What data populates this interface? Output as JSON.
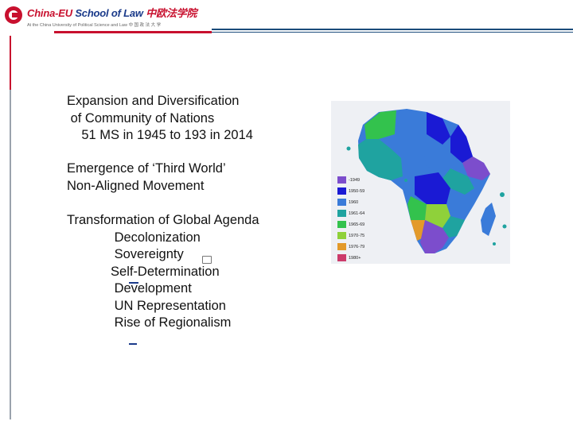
{
  "header": {
    "logo_title_red": "China-EU",
    "logo_title_blue": " School of Law",
    "logo_title_cn": " 中欧法学院",
    "logo_subtitle": "At the China University of Political Science and Law   中 国 政 法 大 学"
  },
  "content": {
    "block1": "Expansion and Diversification\n of Community of Nations\n    51 MS in 1945 to 193 in 2014",
    "block2": "Emergence of ‘Third World’\nNon-Aligned Movement",
    "block3": "Transformation of Global Agenda\n             Decolonization\n             Sovereignty\n            Self-Determination\n             Development\n             UN Representation\n             Rise of Regionalism"
  },
  "map_legend": [
    {
      "label": "-1949",
      "color": "#7c4dcc"
    },
    {
      "label": "1950-59",
      "color": "#1a1ad4"
    },
    {
      "label": "1960",
      "color": "#3a7bd9"
    },
    {
      "label": "1961-64",
      "color": "#1fa3a0"
    },
    {
      "label": "1965-69",
      "color": "#33c24d"
    },
    {
      "label": "1970-75",
      "color": "#8fd13a"
    },
    {
      "label": "1976-79",
      "color": "#e39a2a"
    },
    {
      "label": "1980+",
      "color": "#cc3b6b"
    }
  ]
}
